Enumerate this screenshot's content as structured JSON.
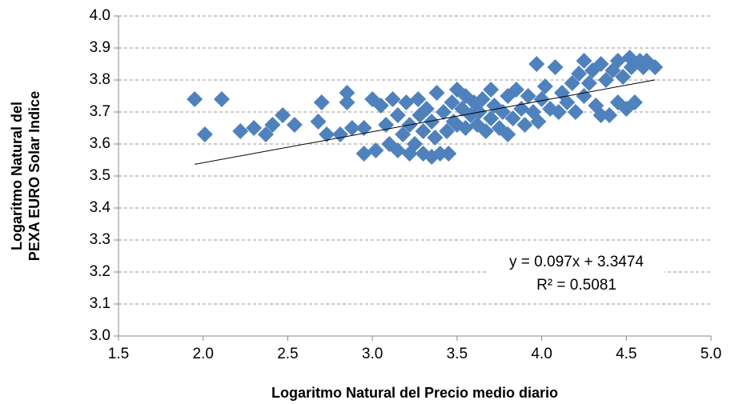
{
  "chart_data": {
    "type": "scatter",
    "x_label": "Logaritmo Natural del Precio medio diario",
    "y_label": [
      "Logaritmo Natural del",
      "PEXA EURO Solar Indice"
    ],
    "color": "#4f81bd",
    "xlim": [
      1.5,
      5.0
    ],
    "ylim": [
      3.0,
      4.0
    ],
    "xticks": [
      1.5,
      {
        "value": 2,
        "label": "2.0"
      },
      2.5,
      {
        "value": 3,
        "label": "3.0"
      },
      3.5,
      {
        "value": 4,
        "label": "4.0"
      },
      4.5,
      {
        "value": 5,
        "label": "5.0"
      }
    ],
    "yticks": [
      {
        "value": 3,
        "label": "3.0"
      },
      3.1,
      3.2,
      3.3,
      3.4,
      3.5,
      3.6,
      3.7,
      3.8,
      3.9,
      {
        "value": 4,
        "label": "4.0"
      }
    ],
    "grid": true,
    "trendline": {
      "slope": 0.097,
      "intercept": 3.3474,
      "equation": "y = 0.097x + 3.3474",
      "r_squared_label": "R² = 0.5081",
      "r_squared": 0.5081
    },
    "x": [
      1.95,
      2.01,
      2.11,
      2.22,
      2.3,
      2.37,
      2.41,
      2.47,
      2.54,
      2.68,
      2.7,
      2.73,
      2.81,
      2.85,
      2.85,
      2.88,
      2.95,
      2.95,
      3.0,
      3.02,
      3.05,
      3.08,
      3.1,
      3.12,
      3.15,
      3.15,
      3.18,
      3.2,
      3.22,
      3.22,
      3.25,
      3.27,
      3.28,
      3.3,
      3.3,
      3.32,
      3.35,
      3.35,
      3.37,
      3.38,
      3.4,
      3.42,
      3.44,
      3.45,
      3.47,
      3.48,
      3.5,
      3.5,
      3.53,
      3.55,
      3.55,
      3.58,
      3.6,
      3.62,
      3.63,
      3.65,
      3.67,
      3.7,
      3.7,
      3.72,
      3.75,
      3.77,
      3.8,
      3.8,
      3.83,
      3.85,
      3.88,
      3.9,
      3.92,
      3.95,
      3.97,
      3.98,
      4.0,
      4.02,
      4.05,
      4.08,
      4.1,
      4.12,
      4.15,
      4.18,
      4.2,
      4.22,
      4.25,
      4.25,
      4.28,
      4.3,
      4.32,
      4.35,
      4.35,
      4.38,
      4.4,
      4.42,
      4.45,
      4.45,
      4.48,
      4.5,
      4.52,
      4.53,
      4.55,
      4.58,
      4.6,
      4.62,
      4.67
    ],
    "values": [
      3.74,
      3.63,
      3.74,
      3.64,
      3.65,
      3.63,
      3.66,
      3.69,
      3.66,
      3.67,
      3.73,
      3.63,
      3.63,
      3.76,
      3.73,
      3.65,
      3.65,
      3.57,
      3.74,
      3.58,
      3.72,
      3.66,
      3.6,
      3.74,
      3.58,
      3.69,
      3.63,
      3.73,
      3.57,
      3.66,
      3.6,
      3.74,
      3.69,
      3.57,
      3.64,
      3.71,
      3.56,
      3.67,
      3.62,
      3.76,
      3.57,
      3.7,
      3.64,
      3.57,
      3.73,
      3.67,
      3.77,
      3.66,
      3.71,
      3.75,
      3.65,
      3.69,
      3.73,
      3.66,
      3.7,
      3.74,
      3.64,
      3.68,
      3.77,
      3.72,
      3.65,
      3.7,
      3.63,
      3.75,
      3.68,
      3.77,
      3.71,
      3.66,
      3.75,
      3.7,
      3.85,
      3.67,
      3.74,
      3.78,
      3.71,
      3.84,
      3.7,
      3.76,
      3.73,
      3.79,
      3.7,
      3.82,
      3.86,
      3.75,
      3.79,
      3.83,
      3.72,
      3.69,
      3.85,
      3.8,
      3.69,
      3.83,
      3.73,
      3.86,
      3.81,
      3.71,
      3.87,
      3.84,
      3.73,
      3.86,
      3.84,
      3.86,
      3.84
    ]
  }
}
